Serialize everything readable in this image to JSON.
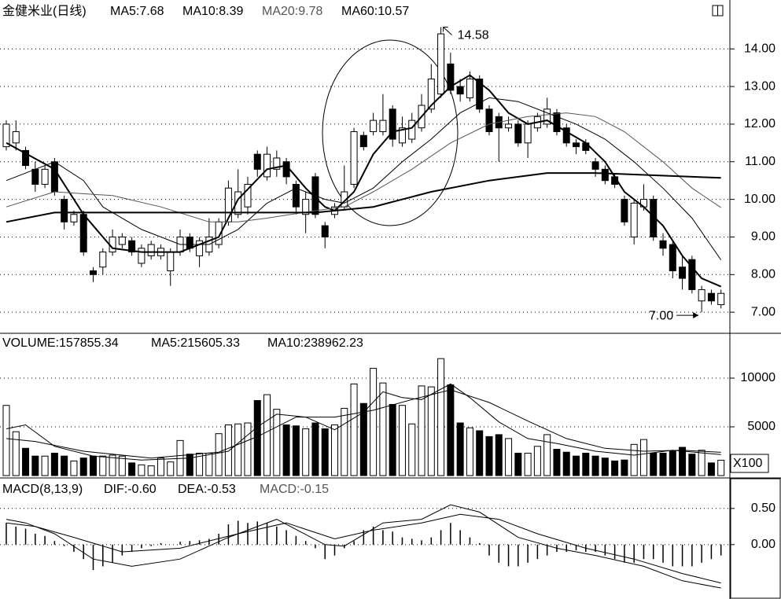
{
  "chart_data": [
    {
      "type": "candlestick",
      "title": "金健米业(日线)",
      "xlim": [
        -0.65,
        74.92
      ],
      "ylim": [
        6.46,
        15.3
      ],
      "yticks": [
        {
          "value": 7,
          "label": "7.00"
        },
        {
          "value": 8,
          "label": "8.00"
        },
        {
          "value": 9,
          "label": "9.00"
        },
        {
          "value": 10,
          "label": "10.00"
        },
        {
          "value": 11,
          "label": "11.00"
        },
        {
          "value": 12,
          "label": "12.00"
        },
        {
          "value": 13,
          "label": "13.00"
        },
        {
          "value": 14,
          "label": "14.00"
        }
      ],
      "grid": true,
      "open": [
        11.4,
        11.5,
        11.3,
        10.8,
        10.4,
        11.0,
        10.0,
        9.4,
        9.6,
        8.1,
        8.2,
        8.6,
        8.8,
        8.9,
        8.3,
        8.5,
        8.5,
        8.1,
        8.6,
        9.0,
        8.5,
        8.6,
        8.8,
        9.4,
        9.6,
        9.8,
        11.2,
        10.6,
        10.8,
        11.0,
        10.4,
        9.6,
        10.6,
        9.3,
        9.6,
        9.8,
        10.4,
        11.7,
        11.8,
        11.8,
        12.4,
        11.5,
        11.6,
        11.9,
        12.4,
        12.8,
        13.6,
        13.0,
        12.7,
        13.2,
        12.4,
        12.2,
        11.9,
        12.0,
        11.5,
        11.9,
        12.0,
        12.3,
        11.9,
        11.5,
        11.5,
        11.0,
        10.8,
        10.6,
        10.0,
        9.0,
        9.8,
        10.0,
        8.9,
        8.8,
        8.2,
        8.4,
        7.3,
        7.5,
        7.2
      ],
      "high": [
        12.1,
        12.1,
        11.4,
        11.0,
        10.9,
        11.1,
        10.1,
        9.7,
        9.7,
        8.2,
        8.7,
        9.2,
        9.1,
        9.0,
        8.8,
        8.9,
        8.8,
        8.7,
        9.2,
        9.1,
        9.0,
        9.5,
        9.5,
        10.5,
        10.8,
        10.6,
        11.3,
        11.4,
        11.3,
        11.1,
        10.5,
        10.2,
        10.7,
        9.4,
        9.9,
        10.9,
        11.9,
        11.8,
        12.3,
        12.8,
        12.5,
        12.2,
        12.3,
        12.8,
        13.6,
        14.58,
        13.9,
        13.2,
        13.4,
        13.3,
        12.5,
        12.3,
        12.2,
        12.1,
        12.1,
        12.3,
        12.7,
        12.4,
        12.0,
        11.6,
        11.6,
        11.1,
        10.9,
        10.7,
        10.1,
        10.0,
        10.4,
        10.1,
        9.1,
        8.9,
        8.5,
        8.5,
        7.7,
        7.6,
        7.6
      ],
      "low": [
        11.3,
        11.3,
        10.8,
        10.2,
        10.3,
        10.1,
        9.2,
        9.3,
        8.5,
        7.8,
        8.0,
        8.5,
        8.7,
        8.5,
        8.2,
        8.4,
        8.4,
        7.7,
        8.5,
        8.6,
        8.2,
        8.5,
        8.7,
        9.3,
        9.5,
        9.6,
        10.6,
        10.5,
        10.6,
        10.4,
        9.6,
        9.1,
        9.5,
        8.7,
        9.5,
        9.7,
        10.3,
        11.3,
        11.7,
        11.7,
        11.4,
        11.4,
        11.5,
        11.8,
        12.3,
        12.7,
        12.8,
        12.6,
        12.6,
        12.3,
        11.7,
        11.0,
        11.8,
        11.4,
        11.1,
        11.8,
        11.9,
        11.7,
        11.4,
        11.2,
        11.2,
        10.6,
        10.4,
        10.3,
        9.3,
        8.8,
        9.7,
        8.9,
        8.5,
        7.9,
        7.6,
        7.5,
        7.0,
        7.2,
        7.1
      ],
      "close": [
        12.0,
        11.8,
        10.9,
        10.4,
        10.8,
        10.2,
        9.4,
        9.6,
        8.6,
        8.0,
        8.6,
        9.0,
        9.0,
        8.6,
        8.7,
        8.8,
        8.7,
        8.6,
        9.0,
        8.7,
        8.9,
        9.0,
        9.4,
        10.3,
        10.2,
        10.4,
        10.8,
        11.2,
        11.1,
        10.6,
        9.8,
        10.0,
        9.6,
        9.0,
        9.8,
        10.2,
        11.8,
        11.4,
        12.1,
        12.1,
        11.6,
        11.9,
        12.1,
        12.5,
        13.2,
        14.4,
        12.9,
        12.8,
        13.2,
        12.4,
        11.8,
        11.9,
        12.0,
        11.5,
        12.0,
        12.2,
        12.4,
        11.8,
        11.5,
        11.4,
        11.3,
        10.8,
        10.5,
        10.4,
        9.4,
        9.9,
        10.0,
        9.0,
        8.7,
        8.1,
        7.9,
        7.6,
        7.6,
        7.3,
        7.5
      ],
      "series": [
        {
          "name": "MA5:7.68",
          "color": "#000000",
          "width": 2,
          "x": [
            0,
            5,
            8,
            11,
            14,
            18,
            22,
            24,
            27,
            29,
            31,
            33,
            34,
            36,
            38,
            40,
            42,
            44,
            46,
            48,
            50,
            52,
            54,
            56,
            58,
            60,
            62,
            64,
            66,
            68,
            70,
            72,
            74
          ],
          "values": [
            11.5,
            10.8,
            9.6,
            8.7,
            8.6,
            8.6,
            9.0,
            10.0,
            10.8,
            10.9,
            10.3,
            9.8,
            9.7,
            10.2,
            11.2,
            11.8,
            11.9,
            12.5,
            13.0,
            13.3,
            12.9,
            12.3,
            12.0,
            12.1,
            11.8,
            11.5,
            11.0,
            10.2,
            9.8,
            9.3,
            8.5,
            7.9,
            7.68
          ]
        },
        {
          "name": "MA10:8.39",
          "color": "#000000",
          "width": 1,
          "x": [
            0,
            5,
            8,
            10,
            14,
            18,
            21,
            24,
            27,
            30,
            33,
            35,
            38,
            41,
            44,
            47,
            50,
            53,
            56,
            59,
            62,
            65,
            68,
            71,
            74
          ],
          "values": [
            10.5,
            11.0,
            10.5,
            9.8,
            9.2,
            8.8,
            8.8,
            9.2,
            9.9,
            10.3,
            10.0,
            9.9,
            10.3,
            11.0,
            11.6,
            12.3,
            12.7,
            12.6,
            12.3,
            12.0,
            11.6,
            11.0,
            10.3,
            9.5,
            8.39
          ]
        },
        {
          "name": "MA20:9.78",
          "color": "#555555",
          "width": 1,
          "x": [
            0,
            5,
            11,
            16,
            21,
            24,
            27,
            32,
            35,
            38,
            42,
            46,
            50,
            54,
            58,
            61,
            64,
            68,
            71,
            74
          ],
          "values": [
            9.8,
            10.2,
            10.1,
            9.8,
            9.4,
            9.4,
            9.5,
            9.7,
            9.8,
            10.2,
            10.8,
            11.5,
            12.0,
            12.2,
            12.3,
            12.2,
            11.8,
            11.0,
            10.3,
            9.78
          ]
        },
        {
          "name": "MA60:10.57",
          "color": "#000000",
          "width": 2,
          "x": [
            0,
            5,
            16,
            32,
            38,
            44,
            50,
            56,
            61,
            74
          ],
          "values": [
            9.4,
            9.65,
            9.65,
            9.65,
            9.8,
            10.2,
            10.5,
            10.7,
            10.7,
            10.57
          ]
        }
      ],
      "annotations": [
        {
          "x": 45,
          "value": 14.58,
          "label": "14.58"
        },
        {
          "x": 72,
          "value": 7,
          "label": "7.00"
        }
      ]
    },
    {
      "type": "volume",
      "title": "VOLUME:157855.34",
      "unit": "X100",
      "xlim": [
        -0.65,
        74.92
      ],
      "ylim": [
        0,
        14516
      ],
      "yticks": [
        5000,
        10000
      ],
      "grid": true,
      "values": [
        7200,
        4500,
        2800,
        2000,
        2000,
        2300,
        2000,
        1500,
        1800,
        2000,
        2000,
        2100,
        2000,
        1300,
        1100,
        1000,
        1800,
        1400,
        3600,
        2200,
        2300,
        2300,
        4300,
        5200,
        5300,
        5400,
        7700,
        8300,
        6800,
        5200,
        5100,
        4800,
        5400,
        4800,
        5200,
        6900,
        9400,
        7400,
        11000,
        9500,
        7300,
        7200,
        5300,
        9200,
        9100,
        12000,
        9300,
        5400,
        4900,
        4600,
        4000,
        4200,
        3800,
        2300,
        2300,
        3000,
        4200,
        2700,
        2400,
        2000,
        2300,
        2000,
        1800,
        1500,
        1600,
        3200,
        3700,
        2300,
        2300,
        2500,
        2900,
        2200,
        2600,
        1300,
        1578.55
      ],
      "series": [
        {
          "name": "MA5:215605.33",
          "color": "#000000",
          "width": 1,
          "x": [
            0,
            2,
            5,
            9,
            14,
            19,
            23,
            26,
            28,
            31,
            34,
            37,
            39,
            41,
            43,
            46,
            48,
            51,
            54,
            57,
            61,
            65,
            69,
            74
          ],
          "values": [
            4800,
            5200,
            3000,
            2000,
            1600,
            1800,
            2500,
            5000,
            6300,
            6000,
            4700,
            6500,
            8600,
            8000,
            7800,
            9400,
            8000,
            5500,
            3800,
            3300,
            2500,
            2100,
            2600,
            2156.05
          ]
        },
        {
          "name": "MA10:238962.23",
          "color": "#000000",
          "width": 1,
          "x": [
            0,
            3,
            8,
            15,
            22,
            26,
            30,
            34,
            38,
            42,
            46,
            50,
            54,
            58,
            62,
            66,
            70,
            74
          ],
          "values": [
            3800,
            3500,
            2500,
            1800,
            2400,
            4000,
            6000,
            6000,
            6700,
            7800,
            8800,
            7500,
            5600,
            3800,
            2800,
            2500,
            2600,
            2389.62
          ]
        }
      ]
    },
    {
      "type": "macd",
      "title": "MACD(8,13,9)",
      "bar_name": "MACD:-0.15",
      "xlim": [
        -0.65,
        74.92
      ],
      "ylim": [
        -0.73,
        0.9
      ],
      "yticks": [
        {
          "value": 0,
          "label": "0.00"
        },
        {
          "value": 0.5,
          "label": "0.50"
        }
      ],
      "grid": true,
      "values": [
        0.3,
        0.25,
        0.22,
        0.15,
        0.12,
        0.05,
        -0.02,
        -0.1,
        -0.2,
        -0.35,
        -0.3,
        -0.25,
        -0.15,
        -0.1,
        -0.05,
        -0.02,
        0.02,
        0,
        0.04,
        0.05,
        0.06,
        0.08,
        0.15,
        0.28,
        0.33,
        0.3,
        0.32,
        0.3,
        0.25,
        0.2,
        0.12,
        0.05,
        -0.05,
        -0.2,
        -0.15,
        -0.05,
        0.05,
        0.2,
        0.25,
        0.2,
        0.18,
        0.1,
        0.08,
        0.06,
        0.1,
        0.2,
        0.3,
        0.2,
        0.1,
        0.02,
        -0.15,
        -0.25,
        -0.3,
        -0.3,
        -0.25,
        -0.2,
        -0.15,
        -0.1,
        -0.1,
        -0.08,
        -0.1,
        -0.1,
        -0.15,
        -0.2,
        -0.25,
        -0.25,
        -0.2,
        -0.2,
        -0.25,
        -0.3,
        -0.3,
        -0.3,
        -0.25,
        -0.2,
        -0.15
      ],
      "series": [
        {
          "name": "DIF:-0.60",
          "color": "#000000",
          "width": 1,
          "x": [
            0,
            2,
            5,
            9,
            13,
            18,
            23,
            28,
            33,
            35,
            39,
            43,
            46,
            49,
            53,
            57,
            61,
            66,
            70,
            74
          ],
          "values": [
            0.35,
            0.3,
            0.15,
            -0.2,
            -0.3,
            -0.2,
            0.1,
            0.35,
            0,
            -0.02,
            0.3,
            0.35,
            0.55,
            0.45,
            0.1,
            -0.05,
            -0.15,
            -0.3,
            -0.5,
            -0.6
          ]
        },
        {
          "name": "DEA:-0.53",
          "color": "#000000",
          "width": 1,
          "x": [
            0,
            3,
            7,
            12,
            18,
            24,
            29,
            34,
            38,
            43,
            47,
            51,
            55,
            60,
            65,
            70,
            74
          ],
          "values": [
            0.3,
            0.25,
            0.1,
            -0.1,
            -0.05,
            0.15,
            0.3,
            0.08,
            0.2,
            0.3,
            0.42,
            0.35,
            0.15,
            -0.05,
            -0.2,
            -0.4,
            -0.53
          ]
        }
      ]
    }
  ]
}
